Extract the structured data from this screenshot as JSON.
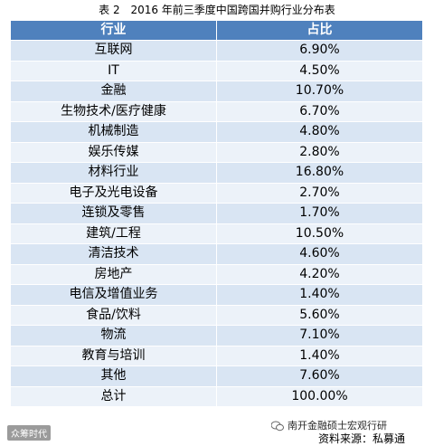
{
  "caption": {
    "label": "表 2",
    "title": "2016 年前三季度中国跨国并购行业分布表"
  },
  "table": {
    "headers": [
      "行业",
      "占比"
    ],
    "rows": [
      [
        "互联网",
        "6.90%"
      ],
      [
        "IT",
        "4.50%"
      ],
      [
        "金融",
        "10.70%"
      ],
      [
        "生物技术/医疗健康",
        "6.70%"
      ],
      [
        "机械制造",
        "4.80%"
      ],
      [
        "娱乐传媒",
        "2.80%"
      ],
      [
        "材料行业",
        "16.80%"
      ],
      [
        "电子及光电设备",
        "2.70%"
      ],
      [
        "连锁及零售",
        "1.70%"
      ],
      [
        "建筑/工程",
        "10.50%"
      ],
      [
        "清洁技术",
        "4.60%"
      ],
      [
        "房地产",
        "4.20%"
      ],
      [
        "电信及增值业务",
        "1.40%"
      ],
      [
        "食品/饮料",
        "5.60%"
      ],
      [
        "物流",
        "7.10%"
      ],
      [
        "教育与培训",
        "1.40%"
      ],
      [
        "其他",
        "7.60%"
      ],
      [
        "总计",
        "100.00%"
      ]
    ]
  },
  "footer": {
    "watermark_left": "众筹时代",
    "watermark_right": "南开金融硕士宏观行研",
    "source": "资料来源：私募通"
  },
  "colors": {
    "header_bg": "#4f81bd",
    "row_bg": "#d9e5f3",
    "row_alt_bg": "#ecf2f9"
  }
}
